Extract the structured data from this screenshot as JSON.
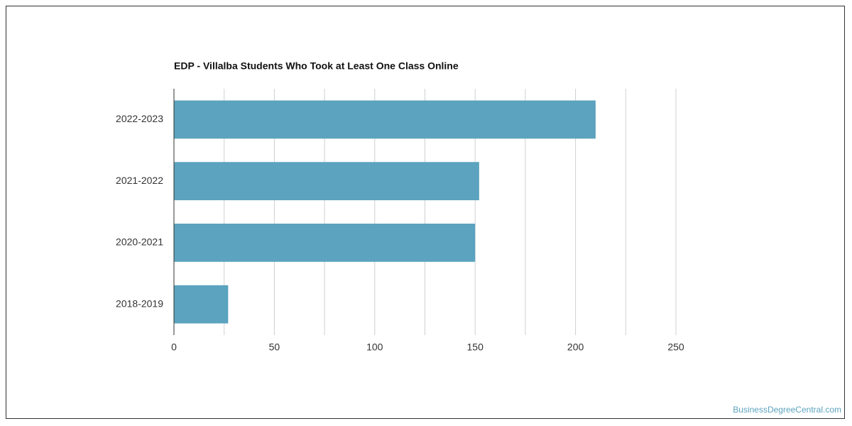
{
  "chart_data": {
    "type": "hbar",
    "title": "EDP - Villalba Students Who Took at Least One Class Online",
    "categories": [
      "2022-2023",
      "2021-2022",
      "2020-2021",
      "2018-2019"
    ],
    "values": [
      210,
      152,
      150,
      27
    ],
    "color": "#5ba3be",
    "xlim": [
      0,
      250
    ],
    "xticks": [
      0,
      50,
      100,
      150,
      200,
      250
    ],
    "minor_xticks": [
      25,
      75,
      125,
      175,
      225
    ],
    "grid": true,
    "watermark": "BusinessDegreeCentral.com"
  }
}
